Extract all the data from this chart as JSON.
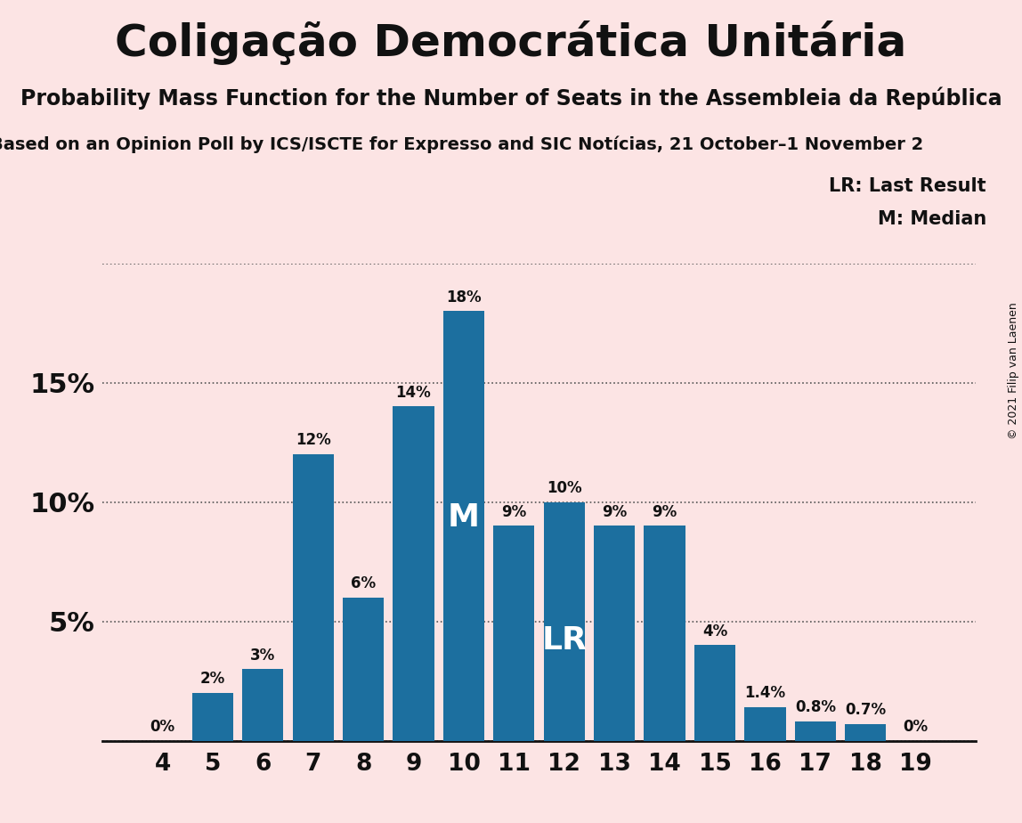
{
  "title": "Coligação Democrática Unitária",
  "subtitle": "Probability Mass Function for the Number of Seats in the Assembleia da República",
  "subtitle2": "Based on an Opinion Poll by ICS/ISCTE for Expresso and SIC Notícias, 21 October–1 November 2",
  "copyright": "© 2021 Filip van Laenen",
  "legend_lr": "LR: Last Result",
  "legend_m": "M: Median",
  "background_color": "#fce4e4",
  "bar_color": "#1c6f9f",
  "categories": [
    4,
    5,
    6,
    7,
    8,
    9,
    10,
    11,
    12,
    13,
    14,
    15,
    16,
    17,
    18,
    19
  ],
  "values": [
    0.0,
    2.0,
    3.0,
    12.0,
    6.0,
    14.0,
    18.0,
    9.0,
    10.0,
    9.0,
    9.0,
    4.0,
    1.4,
    0.8,
    0.7,
    0.0
  ],
  "labels": [
    "0%",
    "2%",
    "3%",
    "12%",
    "6%",
    "14%",
    "18%",
    "9%",
    "10%",
    "9%",
    "9%",
    "4%",
    "1.4%",
    "0.8%",
    "0.7%",
    "0%"
  ],
  "median_seat": 10,
  "lr_seat": 12,
  "ylim": [
    0,
    20
  ],
  "yticks": [
    0,
    5,
    10,
    15,
    20
  ],
  "ytick_labels": [
    "",
    "5%",
    "10%",
    "15%",
    ""
  ],
  "grid_color": "#555555",
  "text_color": "#111111",
  "title_fontsize": 36,
  "subtitle_fontsize": 17,
  "subtitle2_fontsize": 14,
  "bar_label_fontsize": 12,
  "ytick_fontsize": 22,
  "xtick_fontsize": 19,
  "legend_fontsize": 15,
  "m_lr_fontsize": 26,
  "copyright_fontsize": 9
}
